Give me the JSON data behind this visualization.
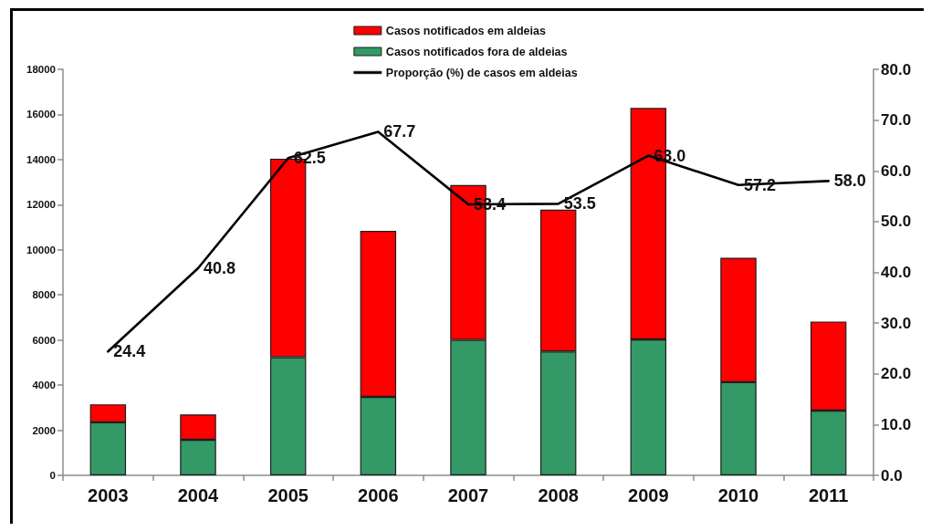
{
  "chart_data": {
    "type": "bar",
    "stacked": true,
    "categories": [
      "2003",
      "2004",
      "2005",
      "2006",
      "2007",
      "2008",
      "2009",
      "2010",
      "2011"
    ],
    "series": [
      {
        "name": "Casos notificados fora de aldeias",
        "color": "#339966",
        "values": [
          2350,
          1580,
          5240,
          3480,
          6000,
          5490,
          6030,
          4130,
          2870
        ]
      },
      {
        "name": "Casos notificados em aldeias",
        "color": "#ff0000",
        "values": [
          800,
          1120,
          8800,
          7360,
          6870,
          6290,
          10260,
          5520,
          3950
        ]
      },
      {
        "name": "Proporção (%) de casos em aldeias",
        "type": "line",
        "axis": "y2",
        "color": "#000000",
        "values": [
          24.4,
          40.8,
          62.5,
          67.7,
          53.4,
          53.5,
          63.0,
          57.2,
          58.0
        ],
        "value_labels": [
          "24.4",
          "40.8",
          "62.5",
          "67.7",
          "53.4",
          "53.5",
          "63.0",
          "57.2",
          "58.0"
        ]
      }
    ],
    "ylim": [
      0,
      18000
    ],
    "yticks": [
      0,
      2000,
      4000,
      6000,
      8000,
      10000,
      12000,
      14000,
      16000,
      18000
    ],
    "y2lim": [
      0,
      80
    ],
    "y2ticks": [
      {
        "value": 0,
        "label": "0.0"
      },
      {
        "value": 10,
        "label": "10.0"
      },
      {
        "value": 20,
        "label": "20.0"
      },
      {
        "value": 30,
        "label": "30.0"
      },
      {
        "value": 40,
        "label": "40.0"
      },
      {
        "value": 50,
        "label": "50.0"
      },
      {
        "value": 60,
        "label": "60.0"
      },
      {
        "value": 70,
        "label": "70.0"
      },
      {
        "value": 80,
        "label": "80.0"
      }
    ],
    "legend": "top",
    "marker": "none"
  }
}
